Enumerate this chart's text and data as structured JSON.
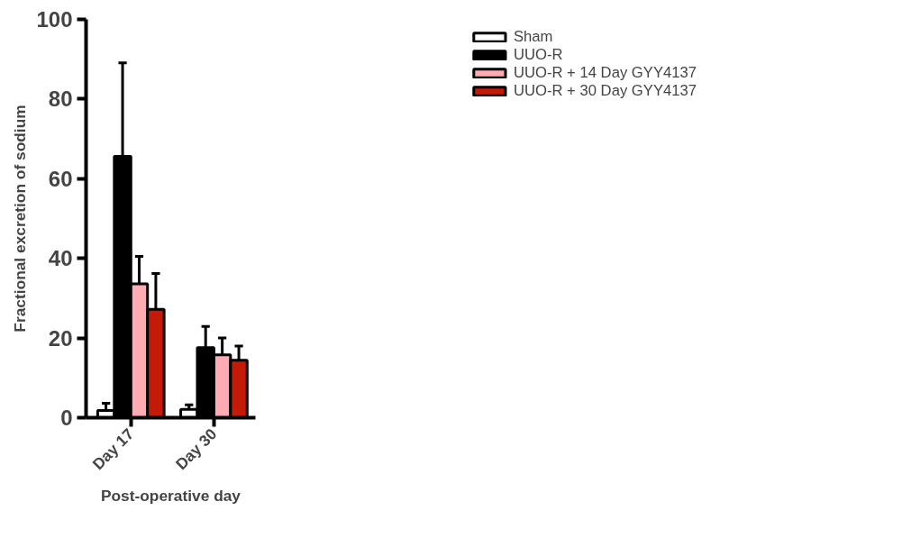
{
  "chart_data": {
    "type": "bar",
    "xlabel": "Post-operative day",
    "ylabel": "Fractional excretion of sodium",
    "categories": [
      "Day 17",
      "Day 30"
    ],
    "series": [
      {
        "name": "Sham",
        "color": "#ffffff",
        "values": [
          1.8,
          2.1
        ],
        "errors": [
          [
            1.8,
            3.6
          ],
          [
            2.1,
            3.2
          ]
        ]
      },
      {
        "name": "UUO-R",
        "color": "#000000",
        "values": [
          65.6,
          17.6
        ],
        "errors": [
          [
            65.6,
            89.1
          ],
          [
            17.6,
            22.9
          ]
        ]
      },
      {
        "name": "UUO-R + 14 Day GYY4137",
        "color": "#ffabb3",
        "values": [
          33.6,
          15.8
        ],
        "errors": [
          [
            33.6,
            40.5
          ],
          [
            15.8,
            20.0
          ]
        ]
      },
      {
        "name": "UUO-R + 30 Day GYY4137",
        "color": "#c41a08",
        "values": [
          27.2,
          14.4
        ],
        "errors": [
          [
            27.2,
            36.2
          ],
          [
            14.4,
            18.0
          ]
        ]
      }
    ],
    "ylim": [
      0,
      100
    ],
    "yticks": [
      0,
      20,
      40,
      60,
      80,
      100
    ],
    "grid": false,
    "legend": "top right"
  }
}
